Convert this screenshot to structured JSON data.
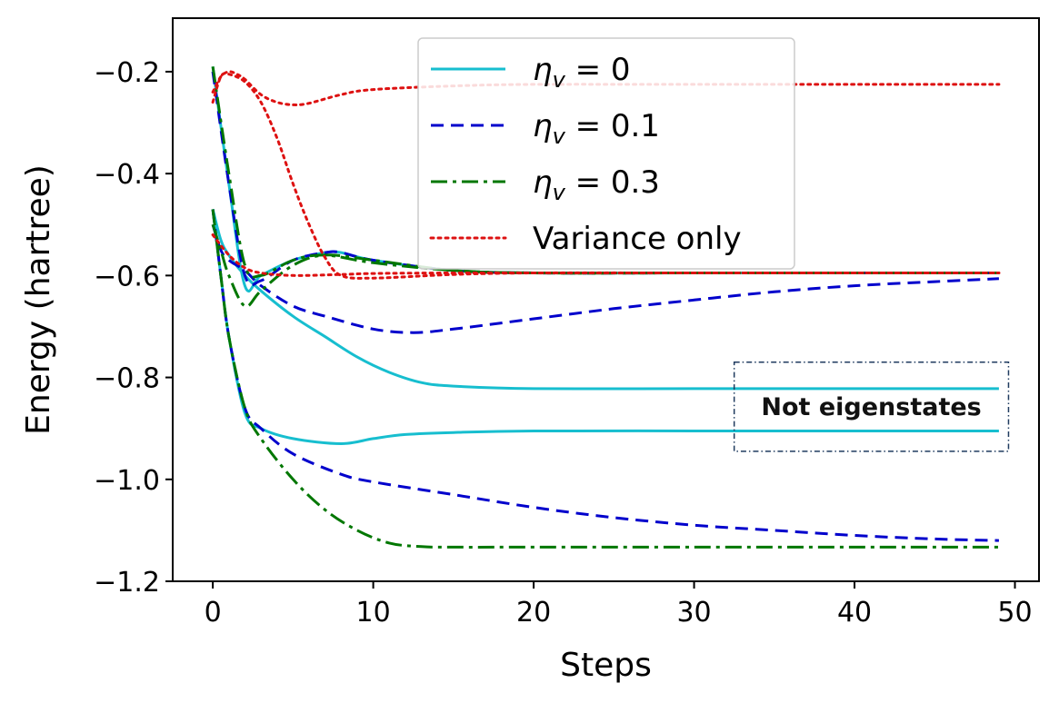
{
  "chart_data": {
    "type": "line",
    "title": "",
    "xlabel": "Steps",
    "ylabel": "Energy (hartree)",
    "xlim": [
      -2.5,
      51.5
    ],
    "ylim": [
      -1.2,
      -0.095
    ],
    "xticks": [
      0,
      10,
      20,
      30,
      40,
      50
    ],
    "xtick_labels": [
      "0",
      "10",
      "20",
      "30",
      "40",
      "50"
    ],
    "yticks": [
      -1.2,
      -1.0,
      -0.8,
      -0.6,
      -0.4,
      -0.2
    ],
    "ytick_labels": [
      "−1.2",
      "−1.0",
      "−0.8",
      "−0.6",
      "−0.4",
      "−0.2"
    ],
    "grid": false,
    "legend_position": "top-center",
    "legend": [
      {
        "label_main": "η",
        "label_sub": "v",
        "label_rest": " = 0",
        "color": "#17becf",
        "style": "solid"
      },
      {
        "label_main": "η",
        "label_sub": "v",
        "label_rest": " = 0.1",
        "color": "#0000cc",
        "style": "dashed"
      },
      {
        "label_main": "η",
        "label_sub": "v",
        "label_rest": " = 0.3",
        "color": "#007700",
        "style": "dashdot"
      },
      {
        "label_main": "Variance only",
        "label_sub": "",
        "label_rest": "",
        "color": "#dd1111",
        "style": "dotted"
      }
    ],
    "annotation": {
      "text": "Not eigenstates",
      "x_range": [
        32.5,
        49.6
      ],
      "y_range": [
        -0.945,
        -0.77
      ]
    },
    "series": [
      {
        "name": "eta_v=0 run 1",
        "group": "η_v = 0",
        "color": "#17becf",
        "style": "solid",
        "x": [
          0,
          1,
          2,
          3,
          5,
          7,
          8,
          10,
          15,
          20,
          30,
          40,
          49
        ],
        "y": [
          -0.19,
          -0.42,
          -0.62,
          -0.6,
          -0.57,
          -0.555,
          -0.555,
          -0.57,
          -0.59,
          -0.595,
          -0.595,
          -0.595,
          -0.595
        ]
      },
      {
        "name": "eta_v=0 run 2",
        "group": "η_v = 0",
        "color": "#17becf",
        "style": "solid",
        "x": [
          0,
          0.5,
          1,
          2,
          3,
          5,
          7,
          9,
          11,
          13,
          15,
          20,
          30,
          40,
          49
        ],
        "y": [
          -0.47,
          -0.53,
          -0.56,
          -0.6,
          -0.63,
          -0.68,
          -0.72,
          -0.76,
          -0.79,
          -0.81,
          -0.817,
          -0.822,
          -0.822,
          -0.822,
          -0.822
        ]
      },
      {
        "name": "eta_v=0 run 3",
        "group": "η_v = 0",
        "color": "#17becf",
        "style": "solid",
        "x": [
          0,
          0.5,
          1,
          2,
          3,
          5,
          8,
          10,
          12,
          15,
          20,
          30,
          40,
          49
        ],
        "y": [
          -0.47,
          -0.6,
          -0.72,
          -0.87,
          -0.9,
          -0.92,
          -0.93,
          -0.92,
          -0.912,
          -0.908,
          -0.905,
          -0.905,
          -0.905,
          -0.905
        ]
      },
      {
        "name": "eta_v=0.1 run 1",
        "group": "η_v = 0.1",
        "color": "#0000cc",
        "style": "dashed",
        "x": [
          0,
          1,
          2,
          3,
          5,
          7,
          8,
          10,
          15,
          20,
          30,
          40,
          49
        ],
        "y": [
          -0.2,
          -0.42,
          -0.6,
          -0.61,
          -0.57,
          -0.555,
          -0.555,
          -0.57,
          -0.59,
          -0.595,
          -0.595,
          -0.595,
          -0.595
        ]
      },
      {
        "name": "eta_v=0.1 run 2",
        "group": "η_v = 0.1",
        "color": "#0000cc",
        "style": "dashed",
        "x": [
          0,
          0.5,
          1,
          2,
          3,
          5,
          7,
          10,
          12.5,
          15,
          20,
          25,
          30,
          35,
          40,
          45,
          49
        ],
        "y": [
          -0.5,
          -0.55,
          -0.57,
          -0.59,
          -0.62,
          -0.66,
          -0.68,
          -0.705,
          -0.712,
          -0.705,
          -0.685,
          -0.665,
          -0.648,
          -0.632,
          -0.62,
          -0.612,
          -0.606
        ]
      },
      {
        "name": "eta_v=0.1 run 3",
        "group": "η_v = 0.1",
        "color": "#0000cc",
        "style": "dashed",
        "x": [
          0,
          0.5,
          1,
          2,
          3,
          5,
          8,
          10,
          15,
          20,
          25,
          30,
          35,
          40,
          45,
          49
        ],
        "y": [
          -0.47,
          -0.6,
          -0.72,
          -0.86,
          -0.9,
          -0.95,
          -0.99,
          -1.005,
          -1.03,
          -1.055,
          -1.075,
          -1.09,
          -1.1,
          -1.11,
          -1.117,
          -1.12
        ]
      },
      {
        "name": "eta_v=0.3 run 1",
        "group": "η_v = 0.3",
        "color": "#007700",
        "style": "dashdot",
        "x": [
          0,
          1,
          2,
          3,
          5,
          7,
          10,
          15,
          20,
          30,
          40,
          49
        ],
        "y": [
          -0.19,
          -0.4,
          -0.58,
          -0.6,
          -0.57,
          -0.56,
          -0.575,
          -0.59,
          -0.595,
          -0.595,
          -0.595,
          -0.595
        ]
      },
      {
        "name": "eta_v=0.3 run 2",
        "group": "η_v = 0.3",
        "color": "#007700",
        "style": "dashdot",
        "x": [
          0,
          0.5,
          1,
          2,
          3,
          5,
          7,
          10,
          15,
          20,
          30,
          40,
          49
        ],
        "y": [
          -0.5,
          -0.55,
          -0.6,
          -0.66,
          -0.63,
          -0.58,
          -0.56,
          -0.57,
          -0.59,
          -0.595,
          -0.595,
          -0.595,
          -0.595
        ]
      },
      {
        "name": "eta_v=0.3 run 3",
        "group": "η_v = 0.3",
        "color": "#007700",
        "style": "dashdot",
        "x": [
          0,
          0.5,
          1,
          2,
          3,
          5,
          7,
          9,
          11,
          13,
          15,
          20,
          30,
          40,
          49
        ],
        "y": [
          -0.47,
          -0.6,
          -0.72,
          -0.86,
          -0.92,
          -1.0,
          -1.06,
          -1.1,
          -1.125,
          -1.132,
          -1.133,
          -1.133,
          -1.133,
          -1.133,
          -1.133
        ]
      },
      {
        "name": "variance only run 1",
        "group": "Variance only",
        "color": "#dd1111",
        "style": "dotted",
        "x": [
          0,
          0.5,
          1,
          1.5,
          2,
          3,
          4,
          5,
          6,
          8,
          10,
          15,
          20,
          30,
          40,
          49
        ],
        "y": [
          -0.24,
          -0.21,
          -0.2,
          -0.205,
          -0.215,
          -0.245,
          -0.26,
          -0.265,
          -0.262,
          -0.245,
          -0.235,
          -0.228,
          -0.225,
          -0.225,
          -0.225,
          -0.225
        ]
      },
      {
        "name": "variance only run 2",
        "group": "Variance only",
        "color": "#dd1111",
        "style": "dotted",
        "x": [
          0,
          0.5,
          1,
          2,
          3,
          4,
          5,
          6,
          7,
          8,
          10,
          15,
          20,
          30,
          40,
          49
        ],
        "y": [
          -0.26,
          -0.21,
          -0.205,
          -0.22,
          -0.26,
          -0.33,
          -0.42,
          -0.5,
          -0.565,
          -0.6,
          -0.605,
          -0.598,
          -0.595,
          -0.595,
          -0.595,
          -0.595
        ]
      },
      {
        "name": "variance only run 3",
        "group": "Variance only",
        "color": "#dd1111",
        "style": "dotted",
        "x": [
          0,
          1,
          2,
          3,
          5,
          8,
          10,
          15,
          20,
          30,
          40,
          49
        ],
        "y": [
          -0.52,
          -0.56,
          -0.585,
          -0.595,
          -0.6,
          -0.598,
          -0.596,
          -0.595,
          -0.595,
          -0.595,
          -0.595,
          -0.595
        ]
      }
    ]
  }
}
